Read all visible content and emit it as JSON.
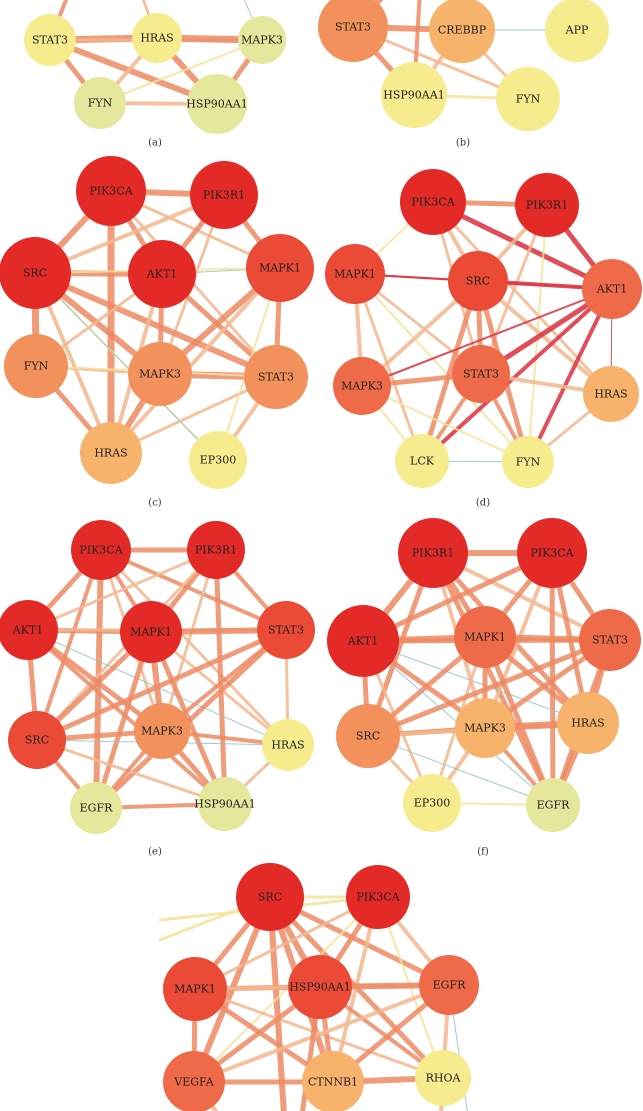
{
  "colors": {
    "red": "#e42a26",
    "red_orange": "#ea4a36",
    "orange_red": "#ee6a48",
    "orange": "#f3915c",
    "light_orange": "#f7b26c",
    "pale_yellow": "#f6eb8d",
    "pale_olive": "#e4e79c",
    "edge_strong": "#dc3b48",
    "edge_orange": "#ed8a63",
    "edge_peach": "#f3b78f",
    "edge_yellow": "#f4e39a",
    "edge_teal": "#8ec3c2"
  },
  "panels": [
    {
      "id": "a",
      "caption": "(a)",
      "nodes": [
        {
          "id": "STAT3",
          "label": "STAT3",
          "color": "pale_yellow"
        },
        {
          "id": "HRAS",
          "label": "HRAS",
          "color": "pale_yellow"
        },
        {
          "id": "MAPK3",
          "label": "MAPK3",
          "color": "pale_olive"
        },
        {
          "id": "FYN",
          "label": "FYN",
          "color": "pale_olive"
        },
        {
          "id": "HSP90AA1",
          "label": "HSP90AA1",
          "color": "pale_olive"
        }
      ]
    },
    {
      "id": "b",
      "caption": "(b)",
      "nodes": [
        {
          "id": "STAT3",
          "label": "STAT3",
          "color": "orange"
        },
        {
          "id": "CREBBP",
          "label": "CREBBP",
          "color": "light_orange"
        },
        {
          "id": "APP",
          "label": "APP",
          "color": "pale_yellow"
        },
        {
          "id": "HSP90AA1",
          "label": "HSP90AA1",
          "color": "pale_yellow"
        },
        {
          "id": "FYN",
          "label": "FYN",
          "color": "pale_yellow"
        }
      ]
    },
    {
      "id": "c",
      "caption": "(c)",
      "nodes": [
        {
          "id": "PIK3CA",
          "label": "PIK3CA",
          "color": "red"
        },
        {
          "id": "PIK3R1",
          "label": "PIK3R1",
          "color": "red"
        },
        {
          "id": "SRC",
          "label": "SRC",
          "color": "red"
        },
        {
          "id": "AKT1",
          "label": "AKT1",
          "color": "red"
        },
        {
          "id": "MAPK1",
          "label": "MAPK1",
          "color": "red_orange"
        },
        {
          "id": "FYN",
          "label": "FYN",
          "color": "orange"
        },
        {
          "id": "MAPK3",
          "label": "MAPK3",
          "color": "orange"
        },
        {
          "id": "STAT3",
          "label": "STAT3",
          "color": "orange"
        },
        {
          "id": "HRAS",
          "label": "HRAS",
          "color": "light_orange"
        },
        {
          "id": "EP300",
          "label": "EP300",
          "color": "pale_yellow"
        }
      ]
    },
    {
      "id": "d",
      "caption": "(d)",
      "nodes": [
        {
          "id": "PIK3CA",
          "label": "PIK3CA",
          "color": "red"
        },
        {
          "id": "PIK3R1",
          "label": "PIK3R1",
          "color": "red"
        },
        {
          "id": "MAPK1",
          "label": "MAPK1",
          "color": "red_orange"
        },
        {
          "id": "SRC",
          "label": "SRC",
          "color": "red_orange"
        },
        {
          "id": "AKT1",
          "label": "AKT1",
          "color": "orange_red"
        },
        {
          "id": "MAPK3",
          "label": "MAPK3",
          "color": "orange_red"
        },
        {
          "id": "STAT3",
          "label": "STAT3",
          "color": "orange_red"
        },
        {
          "id": "HRAS",
          "label": "HRAS",
          "color": "light_orange"
        },
        {
          "id": "LCK",
          "label": "LCK",
          "color": "pale_yellow"
        },
        {
          "id": "FYN",
          "label": "FYN",
          "color": "pale_yellow"
        }
      ]
    },
    {
      "id": "e",
      "caption": "(e)",
      "nodes": [
        {
          "id": "PIK3CA",
          "label": "PIK3CA",
          "color": "red"
        },
        {
          "id": "PIK3R1",
          "label": "PIK3R1",
          "color": "red"
        },
        {
          "id": "AKT1",
          "label": "AKT1",
          "color": "red"
        },
        {
          "id": "MAPK1",
          "label": "MAPK1",
          "color": "red"
        },
        {
          "id": "STAT3",
          "label": "STAT3",
          "color": "red_orange"
        },
        {
          "id": "SRC",
          "label": "SRC",
          "color": "red_orange"
        },
        {
          "id": "MAPK3",
          "label": "MAPK3",
          "color": "orange"
        },
        {
          "id": "HRAS",
          "label": "HRAS",
          "color": "pale_yellow"
        },
        {
          "id": "EGFR",
          "label": "EGFR",
          "color": "pale_olive"
        },
        {
          "id": "HSP90AA1",
          "label": "HSP90AA1",
          "color": "pale_olive"
        }
      ]
    },
    {
      "id": "f",
      "caption": "(f)",
      "nodes": [
        {
          "id": "PIK3R1",
          "label": "PIK3R1",
          "color": "red"
        },
        {
          "id": "PIK3CA",
          "label": "PIK3CA",
          "color": "red"
        },
        {
          "id": "AKT1",
          "label": "AKT1",
          "color": "red"
        },
        {
          "id": "MAPK1",
          "label": "MAPK1",
          "color": "orange_red"
        },
        {
          "id": "STAT3",
          "label": "STAT3",
          "color": "orange_red"
        },
        {
          "id": "SRC",
          "label": "SRC",
          "color": "orange"
        },
        {
          "id": "MAPK3",
          "label": "MAPK3",
          "color": "light_orange"
        },
        {
          "id": "HRAS",
          "label": "HRAS",
          "color": "light_orange"
        },
        {
          "id": "EP300",
          "label": "EP300",
          "color": "pale_yellow"
        },
        {
          "id": "EGFR",
          "label": "EGFR",
          "color": "pale_olive"
        }
      ]
    },
    {
      "id": "g",
      "caption": "",
      "nodes": [
        {
          "id": "SRC",
          "label": "SRC",
          "color": "red"
        },
        {
          "id": "PIK3CA",
          "label": "PIK3CA",
          "color": "red"
        },
        {
          "id": "MAPK1",
          "label": "MAPK1",
          "color": "red_orange"
        },
        {
          "id": "HSP90AA1",
          "label": "HSP90AA1",
          "color": "red_orange"
        },
        {
          "id": "EGFR",
          "label": "EGFR",
          "color": "orange_red"
        },
        {
          "id": "VEGFA",
          "label": "VEGFA",
          "color": "orange_red"
        },
        {
          "id": "CTNNB1",
          "label": "CTNNB1",
          "color": "light_orange"
        },
        {
          "id": "RHOA",
          "label": "RHOA",
          "color": "pale_yellow"
        }
      ]
    }
  ]
}
